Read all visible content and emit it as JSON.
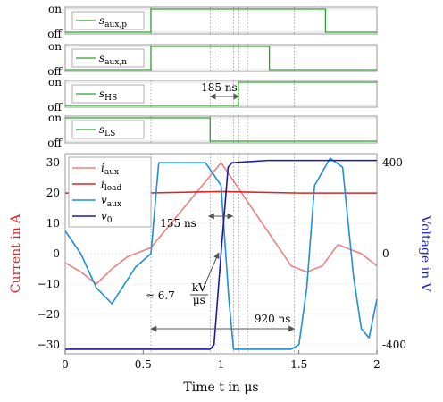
{
  "chart_data": {
    "type": "line",
    "x_range": [
      0,
      2
    ],
    "x_ticks": [
      "0",
      "0.5",
      "1",
      "1.5",
      "2"
    ],
    "xlabel": "Time t in μs",
    "logic_panels": [
      {
        "label": "s_aux,p",
        "label_main": "s",
        "label_sub": "aux,p",
        "off_label": "off",
        "on_label": "on",
        "transitions": [
          [
            0,
            0
          ],
          [
            0.55,
            1
          ],
          [
            1.67,
            0
          ],
          [
            2.0,
            0
          ]
        ]
      },
      {
        "label": "s_aux,n",
        "label_main": "s",
        "label_sub": "aux,n",
        "off_label": "off",
        "on_label": "on",
        "transitions": [
          [
            0,
            0
          ],
          [
            0.55,
            1
          ],
          [
            1.31,
            0
          ],
          [
            2.0,
            0
          ]
        ]
      },
      {
        "label": "s_HS",
        "label_main": "s",
        "label_sub": "HS",
        "off_label": "off",
        "on_label": "on",
        "transitions": [
          [
            0,
            0
          ],
          [
            1.11,
            1
          ],
          [
            2.0,
            1
          ]
        ]
      },
      {
        "label": "s_LS",
        "label_main": "s",
        "label_sub": "LS",
        "off_label": "off",
        "on_label": "on",
        "transitions": [
          [
            0,
            1
          ],
          [
            0.93,
            0
          ],
          [
            2.0,
            0
          ]
        ]
      }
    ],
    "main_plot": {
      "left_axis": {
        "label": "Current in A",
        "color": "#d62728",
        "range": [
          -33,
          33
        ],
        "ticks": [
          "30",
          "20",
          "10",
          "0",
          "−10",
          "−20",
          "−30"
        ],
        "tick_values": [
          30,
          20,
          10,
          0,
          -10,
          -20,
          -30
        ]
      },
      "right_axis": {
        "label": "Voltage in V",
        "color": "#1f1fa0",
        "range": [
          -440,
          440
        ],
        "ticks": [
          "400",
          "0",
          "-400"
        ],
        "tick_values": [
          400,
          0,
          -400
        ]
      },
      "legend": {
        "placement": "top-left"
      },
      "series": [
        {
          "name": "i_aux",
          "name_main": "i",
          "name_sub": "aux",
          "axis": "left",
          "color": "#f08080",
          "x": [
            0,
            0.1,
            0.2,
            0.3,
            0.4,
            0.55,
            1.0,
            1.45,
            1.55,
            1.65,
            1.75,
            1.9,
            2.0
          ],
          "y": [
            -3,
            -6,
            -10,
            -5,
            -1,
            2,
            30,
            -4,
            -6,
            -4,
            3,
            0,
            -4
          ]
        },
        {
          "name": "i_load",
          "name_main": "i",
          "name_sub": "load",
          "axis": "left",
          "color": "#d62728",
          "x": [
            0,
            0.5,
            1.0,
            1.5,
            2.0
          ],
          "y": [
            20,
            20,
            20.5,
            20,
            20
          ]
        },
        {
          "name": "v_aux",
          "name_main": "v",
          "name_sub": "aux",
          "axis": "right",
          "color": "#1f8fd6",
          "x": [
            0,
            0.1,
            0.2,
            0.3,
            0.45,
            0.55,
            0.6,
            0.75,
            0.9,
            1.0,
            1.05,
            1.08,
            1.2,
            1.35,
            1.45,
            1.5,
            1.55,
            1.6,
            1.7,
            1.78,
            1.85,
            1.9,
            1.95,
            2.0
          ],
          "y": [
            100,
            0,
            -150,
            -220,
            -60,
            0,
            400,
            400,
            400,
            300,
            -200,
            -420,
            -420,
            -420,
            -420,
            -400,
            -150,
            300,
            420,
            380,
            -100,
            -330,
            -370,
            -200
          ]
        },
        {
          "name": "v_0",
          "name_main": "v",
          "name_sub": "0",
          "axis": "right",
          "color": "#1a1aa8",
          "x": [
            0,
            0.5,
            0.93,
            0.955,
            1.0,
            1.045,
            1.07,
            1.3,
            1.6,
            2.0
          ],
          "y": [
            -420,
            -420,
            -420,
            -400,
            0,
            380,
            400,
            410,
            410,
            410
          ]
        }
      ],
      "annotations": [
        {
          "text": "185 ns",
          "x_from": 0.93,
          "x_to": 1.115,
          "panel": "s_HS"
        },
        {
          "text": "155 ns",
          "x_from": 0.92,
          "x_to": 1.075
        },
        {
          "text": "920 ns",
          "x_from": 0.55,
          "x_to": 1.47
        },
        {
          "text_prefix": "≈ 6.7",
          "unit_num": "kV",
          "unit_den": "μs"
        }
      ],
      "vertical_markers_x": [
        0.55,
        0.93,
        1.0,
        1.08,
        1.115,
        1.17,
        1.47
      ]
    }
  }
}
